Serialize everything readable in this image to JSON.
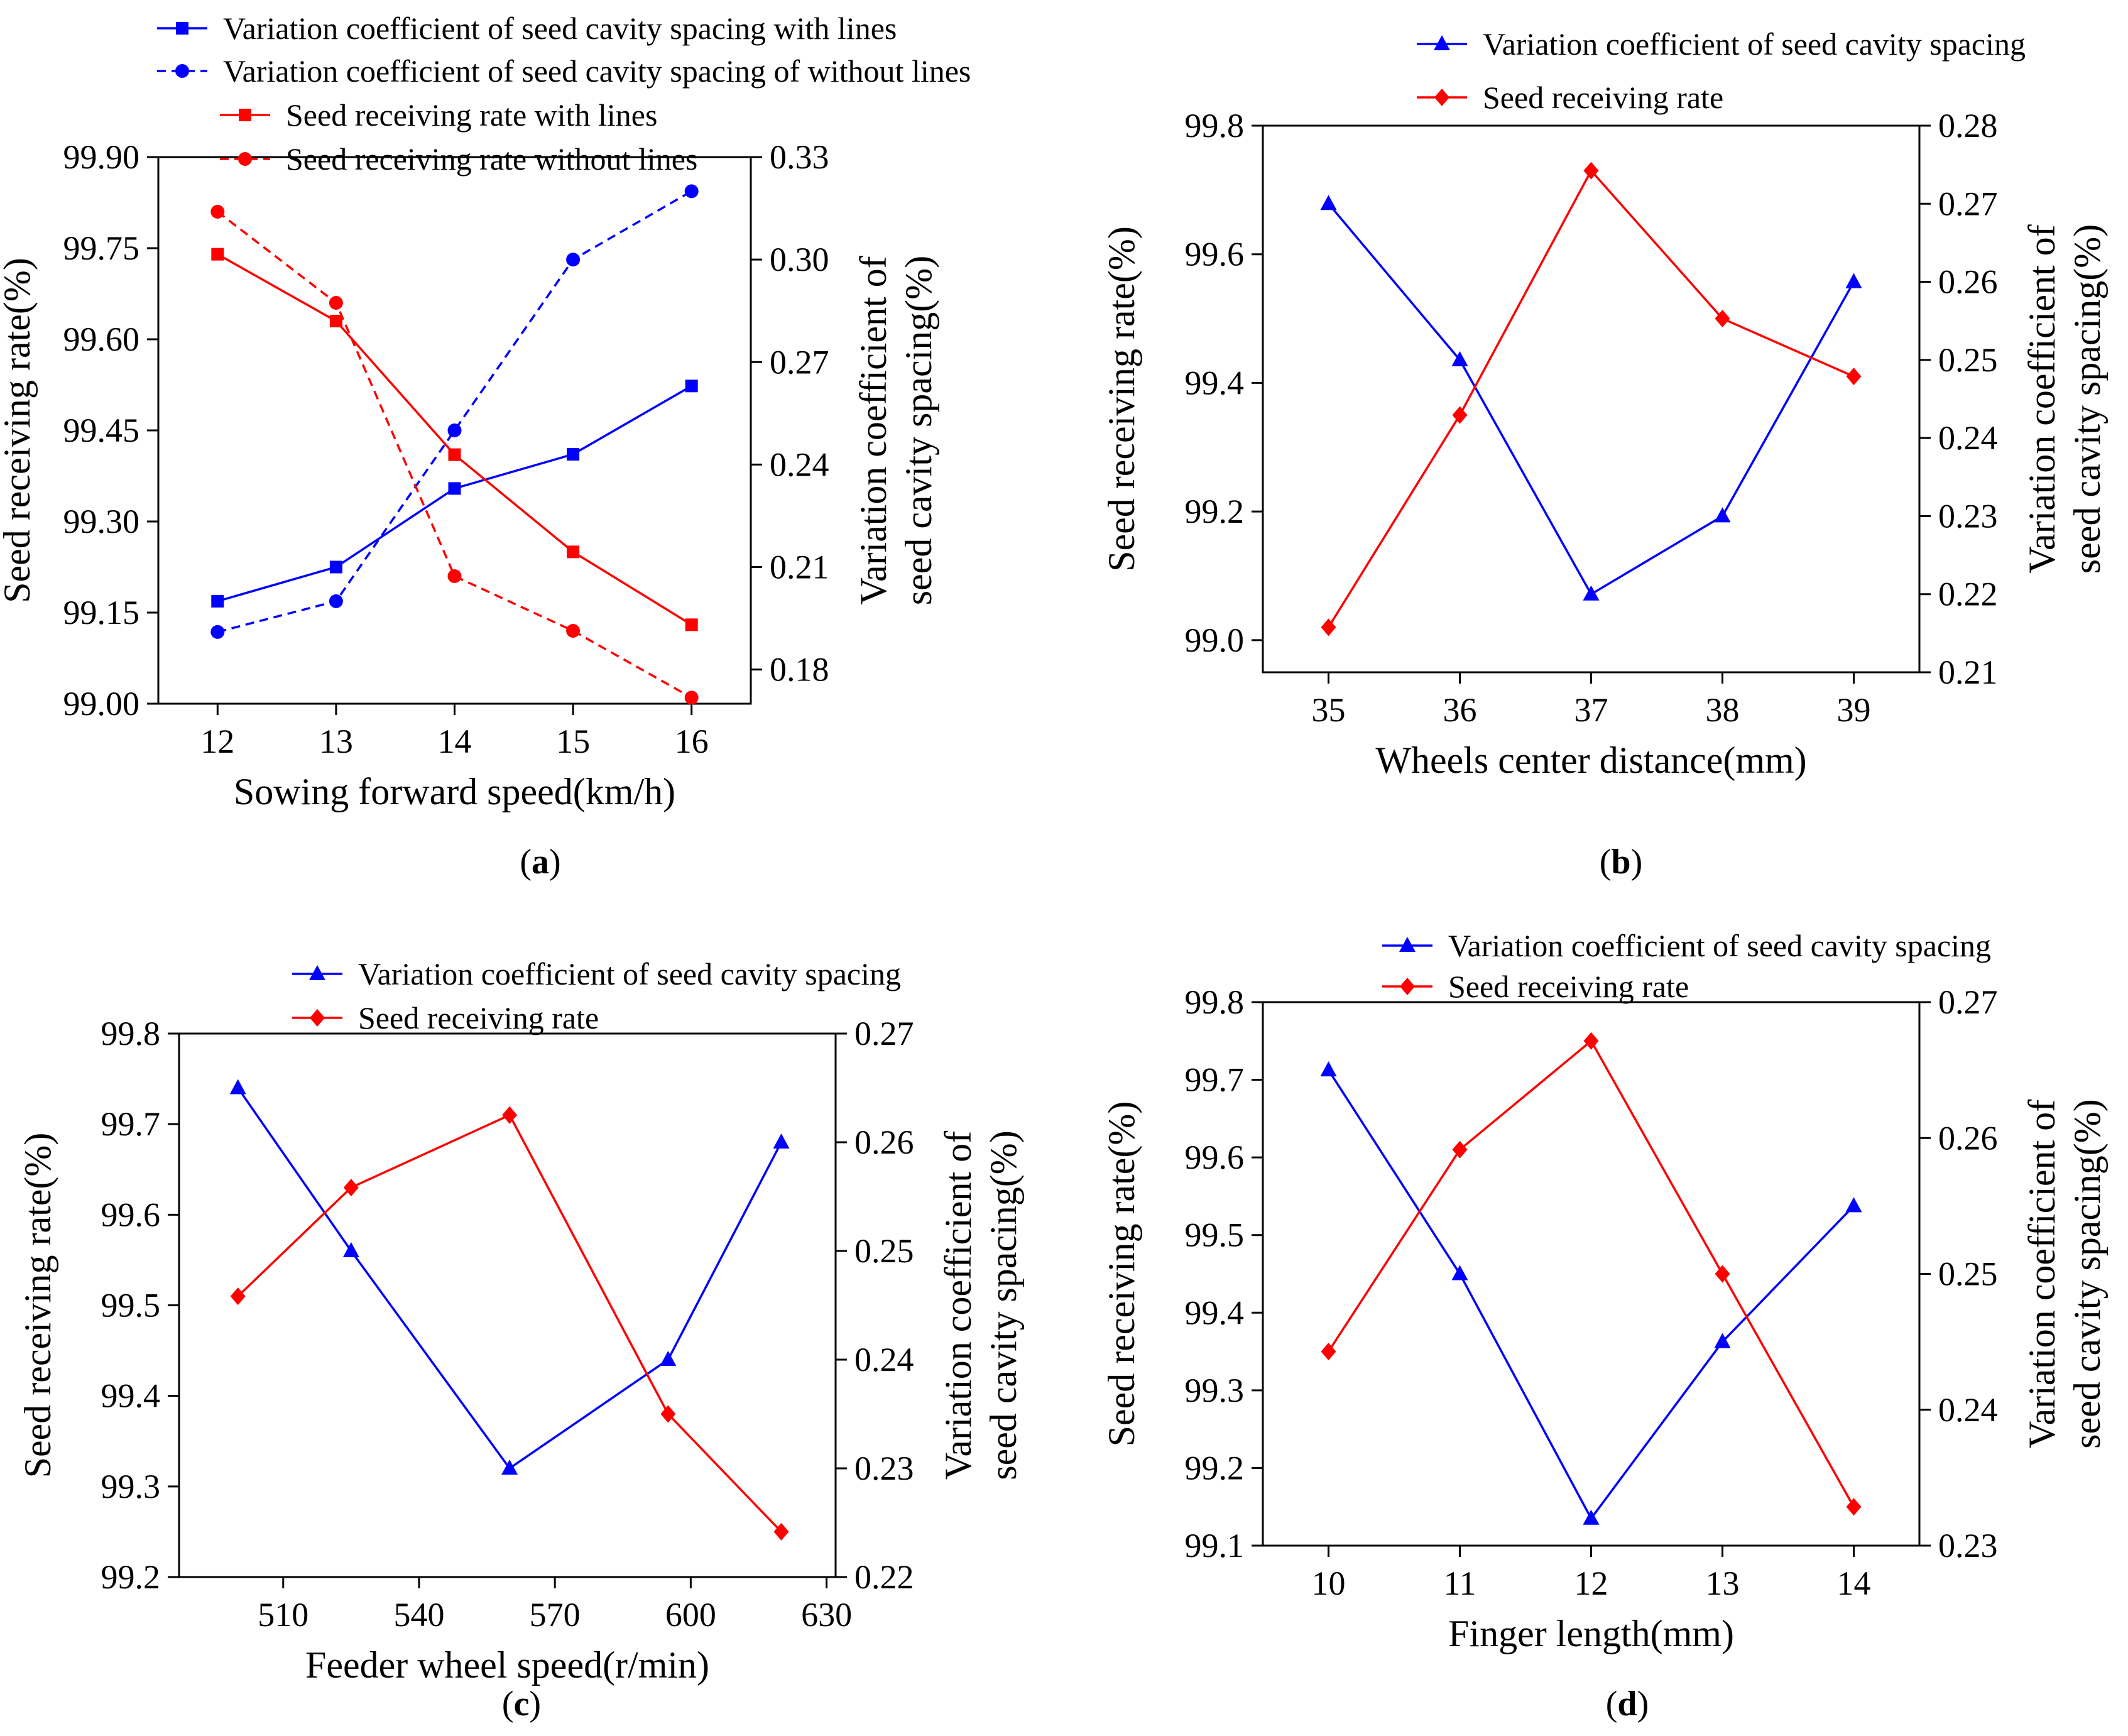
{
  "figure": {
    "panels": [
      {
        "label_letter": "a"
      },
      {
        "label_letter": "b"
      },
      {
        "label_letter": "c"
      },
      {
        "label_letter": "d"
      }
    ]
  },
  "colors": {
    "blue": "#0000ff",
    "red": "#ff0000",
    "axis": "#000000"
  },
  "chart_data": [
    {
      "type": "line",
      "panel": "a",
      "xlabel": "Sowing forward speed(km/h)",
      "ylabel_left": "Seed receiving rate(%)",
      "ylabel_right_lines": [
        "Variation coefficient of",
        "seed cavity spacing(%)"
      ],
      "x": [
        12,
        13,
        14,
        15,
        16
      ],
      "xlim": [
        11.5,
        16.5
      ],
      "xticks": [
        12,
        13,
        14,
        15,
        16
      ],
      "ylim_left": [
        99.0,
        99.9
      ],
      "yticks_left": [
        "99.00",
        "99.15",
        "99.30",
        "99.45",
        "99.60",
        "99.75",
        "99.90"
      ],
      "ylim_right": [
        0.17,
        0.33
      ],
      "yticks_right": [
        "0.18",
        "0.21",
        "0.24",
        "0.27",
        "0.30",
        "0.33"
      ],
      "legend_position": "top",
      "series": [
        {
          "name": "Variation coefficient of seed cavity spacing with lines",
          "axis": "right",
          "color": "blue",
          "dash": "solid",
          "marker": "square",
          "values": [
            0.2,
            0.21,
            0.233,
            0.243,
            0.263
          ]
        },
        {
          "name": "Variation coefficient of seed cavity spacing of without lines",
          "axis": "right",
          "color": "blue",
          "dash": "dashed",
          "marker": "circle",
          "values": [
            0.191,
            0.2,
            0.25,
            0.3,
            0.32
          ]
        },
        {
          "name": "Seed receiving rate with lines",
          "axis": "left",
          "color": "red",
          "dash": "solid",
          "marker": "square",
          "values": [
            99.74,
            99.63,
            99.41,
            99.25,
            99.13
          ]
        },
        {
          "name": "Seed receiving rate without lines",
          "axis": "left",
          "color": "red",
          "dash": "dashed",
          "marker": "circle",
          "values": [
            99.81,
            99.66,
            99.21,
            99.12,
            99.01
          ]
        }
      ]
    },
    {
      "type": "line",
      "panel": "b",
      "xlabel": "Wheels center distance(mm)",
      "ylabel_left": "Seed receiving rate(%)",
      "ylabel_right_lines": [
        "Variation coefficient of",
        "seed cavity spacing(%)"
      ],
      "x": [
        35,
        36,
        37,
        38,
        39
      ],
      "xlim": [
        34.5,
        39.5
      ],
      "xticks": [
        35,
        36,
        37,
        38,
        39
      ],
      "ylim_left": [
        98.95,
        99.8
      ],
      "yticks_left": [
        "99.0",
        "99.2",
        "99.4",
        "99.6",
        "99.8"
      ],
      "ylim_right": [
        0.21,
        0.28
      ],
      "yticks_right": [
        "0.21",
        "0.22",
        "0.23",
        "0.24",
        "0.25",
        "0.26",
        "0.27",
        "0.28"
      ],
      "legend_position": "top",
      "series": [
        {
          "name": "Variation coefficient of seed cavity spacing",
          "axis": "right",
          "color": "blue",
          "dash": "solid",
          "marker": "triangle",
          "values": [
            0.27,
            0.25,
            0.22,
            0.23,
            0.26
          ]
        },
        {
          "name": "Seed receiving rate",
          "axis": "left",
          "color": "red",
          "dash": "solid",
          "marker": "diamond",
          "values": [
            99.02,
            99.35,
            99.73,
            99.5,
            99.41
          ]
        }
      ]
    },
    {
      "type": "line",
      "panel": "c",
      "xlabel": "Feeder wheel speed(r/min)",
      "ylabel_left": "Seed receiving rate(%)",
      "ylabel_right_lines": [
        "Variation coefficient of",
        "seed cavity spacing(%)"
      ],
      "x": [
        500,
        525,
        560,
        595,
        620
      ],
      "xlim": [
        487,
        632
      ],
      "xticks": [
        510,
        540,
        570,
        600,
        630
      ],
      "ylim_left": [
        99.2,
        99.8
      ],
      "yticks_left": [
        "99.2",
        "99.3",
        "99.4",
        "99.5",
        "99.6",
        "99.7",
        "99.8"
      ],
      "ylim_right": [
        0.22,
        0.27
      ],
      "yticks_right": [
        "0.22",
        "0.23",
        "0.24",
        "0.25",
        "0.26",
        "0.27"
      ],
      "legend_position": "top",
      "series": [
        {
          "name": "Variation coefficient of seed cavity spacing",
          "axis": "right",
          "color": "blue",
          "dash": "solid",
          "marker": "triangle",
          "values": [
            0.265,
            0.25,
            0.23,
            0.24,
            0.26
          ]
        },
        {
          "name": "Seed receiving rate",
          "axis": "left",
          "color": "red",
          "dash": "solid",
          "marker": "diamond",
          "values": [
            99.51,
            99.63,
            99.71,
            99.38,
            99.25
          ]
        }
      ]
    },
    {
      "type": "line",
      "panel": "d",
      "xlabel": "Finger length(mm)",
      "ylabel_left": "Seed receiving rate(%)",
      "ylabel_right_lines": [
        "Variation coefficient of",
        "seed cavity spacing(%)"
      ],
      "x": [
        10,
        11,
        12,
        13,
        14
      ],
      "xlim": [
        9.5,
        14.5
      ],
      "xticks": [
        10,
        11,
        12,
        13,
        14
      ],
      "ylim_left": [
        99.1,
        99.8
      ],
      "yticks_left": [
        "99.1",
        "99.2",
        "99.3",
        "99.4",
        "99.5",
        "99.6",
        "99.7",
        "99.8"
      ],
      "ylim_right": [
        0.23,
        0.27
      ],
      "yticks_right": [
        "0.23",
        "0.24",
        "0.25",
        "0.26",
        "0.27"
      ],
      "legend_position": "top",
      "series": [
        {
          "name": "Variation coefficient of seed cavity spacing",
          "axis": "right",
          "color": "blue",
          "dash": "solid",
          "marker": "triangle",
          "values": [
            0.265,
            0.25,
            0.232,
            0.245,
            0.255
          ]
        },
        {
          "name": "Seed receiving rate",
          "axis": "left",
          "color": "red",
          "dash": "solid",
          "marker": "diamond",
          "values": [
            99.35,
            99.61,
            99.75,
            99.45,
            99.15
          ]
        }
      ]
    }
  ]
}
